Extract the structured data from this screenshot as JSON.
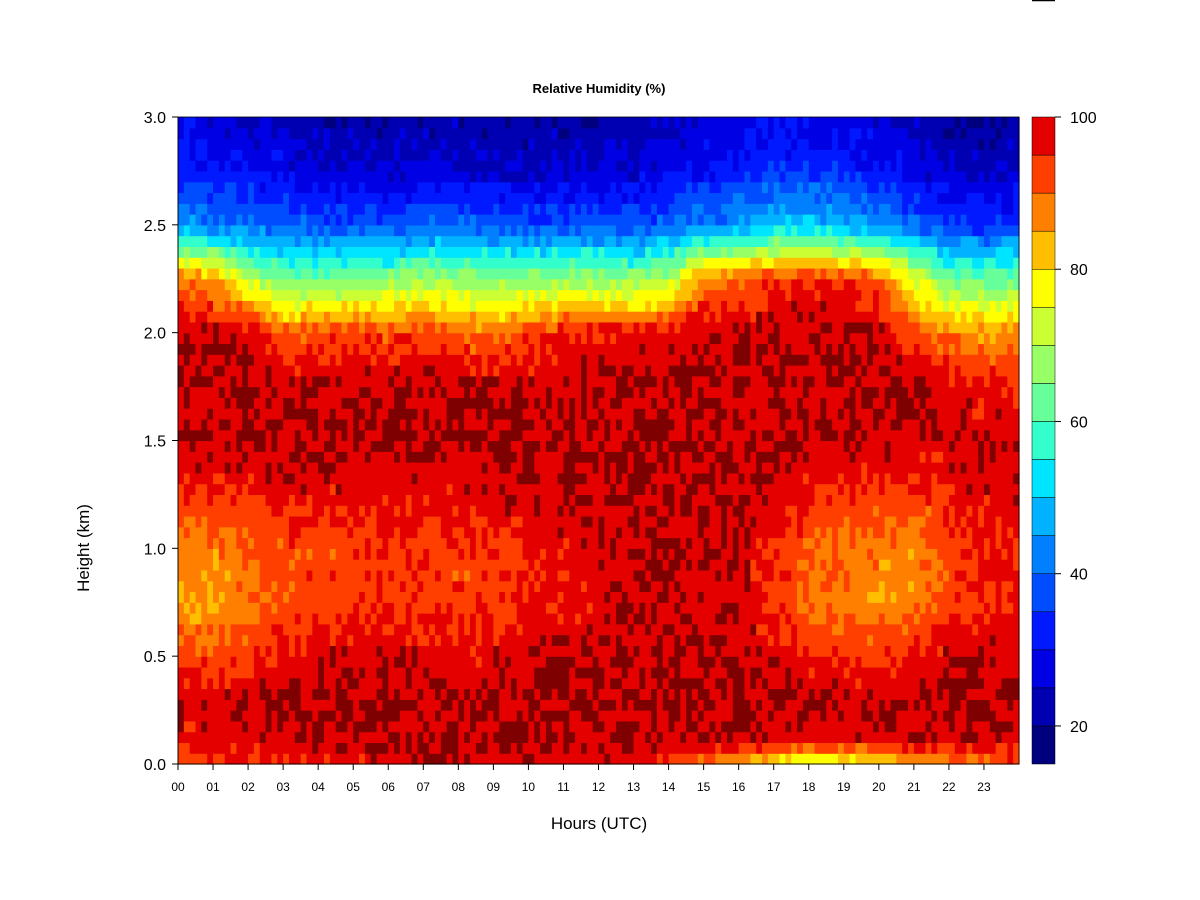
{
  "chart_data": {
    "type": "heatmap",
    "title": "Relative Humidity (%)",
    "xlabel": "Hours (UTC)",
    "ylabel": "Height (km)",
    "x_ticks": [
      "00",
      "01",
      "02",
      "03",
      "04",
      "05",
      "06",
      "07",
      "08",
      "09",
      "10",
      "11",
      "12",
      "13",
      "14",
      "15",
      "16",
      "17",
      "18",
      "19",
      "20",
      "21",
      "22",
      "23"
    ],
    "y_ticks": [
      "0.0",
      "0.5",
      "1.0",
      "1.5",
      "2.0",
      "2.5",
      "3.0"
    ],
    "xlim": [
      0,
      24
    ],
    "ylim": [
      0,
      3
    ],
    "colorbar": {
      "range": [
        15,
        100
      ],
      "tick_values": [
        20,
        40,
        60,
        80,
        100
      ],
      "tick_labels": [
        "20",
        "40",
        "60",
        "80",
        "100"
      ],
      "levels": [
        15,
        20,
        25,
        30,
        35,
        40,
        45,
        50,
        55,
        60,
        65,
        70,
        75,
        80,
        85,
        90,
        95,
        100
      ],
      "colors": [
        "#00007f",
        "#0000b2",
        "#0000e5",
        "#0019ff",
        "#004cff",
        "#007fff",
        "#00b2ff",
        "#00e5ff",
        "#33ffcc",
        "#66ff99",
        "#99ff66",
        "#ccff33",
        "#ffff00",
        "#ffbf00",
        "#ff7f00",
        "#ff3f00",
        "#e50000",
        "#7f0000"
      ]
    },
    "heights_km": [
      0.0,
      0.1,
      0.25,
      0.5,
      0.75,
      1.0,
      1.25,
      1.5,
      1.75,
      2.0,
      2.25,
      2.5,
      2.75,
      3.0
    ],
    "hours_utc": [
      0,
      1,
      2,
      3,
      4,
      5,
      6,
      7,
      8,
      9,
      10,
      11,
      12,
      13,
      14,
      15,
      16,
      17,
      18,
      19,
      20,
      21,
      22,
      23,
      24
    ],
    "humidity_by_hour": [
      [
        90,
        95,
        100,
        92,
        86,
        88,
        95,
        100,
        100,
        100,
        88,
        45,
        33,
        28
      ],
      [
        92,
        96,
        100,
        92,
        84,
        87,
        95,
        100,
        100,
        100,
        86,
        42,
        30,
        26
      ],
      [
        94,
        97,
        100,
        94,
        88,
        90,
        96,
        100,
        100,
        100,
        72,
        40,
        30,
        25
      ],
      [
        95,
        98,
        100,
        97,
        92,
        92,
        97,
        100,
        100,
        90,
        64,
        40,
        29,
        24
      ],
      [
        96,
        99,
        100,
        98,
        93,
        92,
        97,
        100,
        100,
        92,
        64,
        38,
        26,
        22
      ],
      [
        97,
        99,
        100,
        98,
        93,
        93,
        97,
        100,
        100,
        93,
        65,
        38,
        25,
        21
      ],
      [
        98,
        100,
        100,
        99,
        94,
        94,
        98,
        100,
        100,
        92,
        66,
        38,
        25,
        21
      ],
      [
        98,
        100,
        100,
        98,
        93,
        94,
        97,
        100,
        100,
        94,
        68,
        39,
        26,
        21
      ],
      [
        98,
        100,
        100,
        97,
        92,
        93,
        97,
        100,
        100,
        90,
        67,
        40,
        26,
        22
      ],
      [
        98,
        100,
        100,
        98,
        93,
        94,
        98,
        100,
        100,
        88,
        66,
        38,
        24,
        21
      ],
      [
        98,
        100,
        100,
        99,
        95,
        96,
        99,
        100,
        100,
        92,
        67,
        38,
        24,
        21
      ],
      [
        97,
        100,
        100,
        100,
        96,
        97,
        99,
        100,
        100,
        96,
        68,
        38,
        25,
        21
      ],
      [
        97,
        100,
        100,
        100,
        98,
        99,
        100,
        100,
        100,
        97,
        68,
        38,
        25,
        22
      ],
      [
        96,
        100,
        100,
        100,
        99,
        99,
        100,
        100,
        100,
        97,
        66,
        37,
        26,
        23
      ],
      [
        94,
        100,
        100,
        100,
        99,
        100,
        100,
        100,
        100,
        97,
        70,
        40,
        28,
        24
      ],
      [
        88,
        100,
        100,
        100,
        99,
        100,
        100,
        100,
        100,
        100,
        88,
        42,
        31,
        26
      ],
      [
        82,
        100,
        100,
        100,
        98,
        99,
        100,
        100,
        100,
        100,
        90,
        44,
        32,
        27
      ],
      [
        76,
        98,
        100,
        98,
        94,
        95,
        98,
        100,
        100,
        100,
        94,
        50,
        35,
        28
      ],
      [
        72,
        97,
        100,
        96,
        90,
        90,
        96,
        100,
        100,
        100,
        95,
        50,
        34,
        28
      ],
      [
        74,
        97,
        100,
        95,
        88,
        89,
        95,
        100,
        100,
        100,
        95,
        48,
        33,
        27
      ],
      [
        78,
        98,
        100,
        93,
        86,
        88,
        94,
        100,
        100,
        100,
        90,
        44,
        30,
        26
      ],
      [
        86,
        98,
        100,
        96,
        88,
        86,
        93,
        98,
        100,
        92,
        75,
        40,
        28,
        23
      ],
      [
        88,
        98,
        100,
        99,
        92,
        92,
        96,
        99,
        98,
        88,
        64,
        36,
        24,
        20
      ],
      [
        90,
        98,
        100,
        99,
        95,
        95,
        98,
        99,
        96,
        86,
        62,
        34,
        24,
        20
      ],
      [
        91,
        98,
        100,
        99,
        96,
        96,
        98,
        99,
        96,
        86,
        64,
        36,
        25,
        21
      ]
    ]
  }
}
